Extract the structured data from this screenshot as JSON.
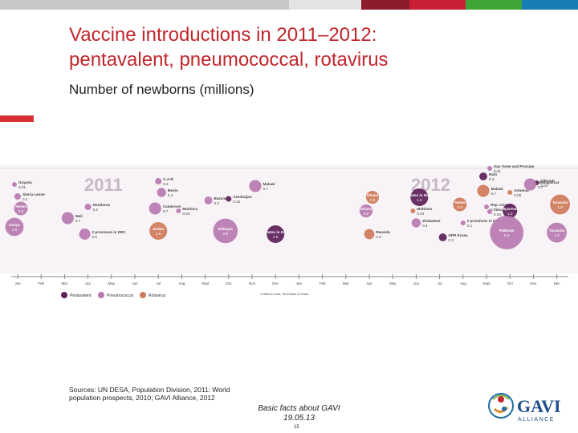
{
  "colors": {
    "topbar": [
      "#c8c8c8",
      "#e3e3e3",
      "#8e1a2d",
      "#c81f35",
      "#3fa535",
      "#167eb3"
    ],
    "pentavalent": "#5b1f57",
    "pneumococcal": "#b879b0",
    "rotavirus": "#cf7b5a",
    "title": "#c0272d"
  },
  "title": {
    "line1": "Vaccine introductions in 2011–2012:",
    "line2": "pentavalent, pneumococcal, rotavirus"
  },
  "subtitle": "Number of newborns (millions)",
  "sources": "Sources: UN DESA, Population Division, 2011: World population prospects, 2010; GAVI Alliance, 2012",
  "footer": {
    "line1": "Basic facts about GAVI",
    "line2": "19.05.13",
    "page": "15"
  },
  "logo": {
    "text": "GAVI",
    "subtext": "ALLIANCE",
    "icon": "globe-mother-child-icon"
  },
  "chart_data": {
    "type": "scatter",
    "encoding": "bubble size = number of newborns (millions); color = vaccine type; x = month of introduction",
    "years": [
      "2011",
      "2012"
    ],
    "months": [
      "Jan",
      "Feb",
      "Mar",
      "Apr",
      "May",
      "Jun",
      "Jul",
      "Aug",
      "Sept",
      "Oct",
      "Nov",
      "Dec"
    ],
    "series": [
      {
        "name": "Pentavalent",
        "color": "#5b1f57"
      },
      {
        "name": "Pneumococcal",
        "color": "#b879b0"
      },
      {
        "name": "Rotavirus",
        "color": "#cf7b5a"
      }
    ],
    "note": "2 states in India; Tamil Nadu & Kerala",
    "points": [
      {
        "label": "Guyana",
        "value": "0.01",
        "year": 2011,
        "month": 1,
        "series": "Pneumococcal"
      },
      {
        "label": "Sierra Leone",
        "value": "0.2",
        "year": 2011,
        "month": 1,
        "series": "Pneumococcal"
      },
      {
        "label": "Yemen",
        "value": "0.9",
        "year": 2011,
        "month": 1,
        "series": "Pneumococcal"
      },
      {
        "label": "Kenya",
        "value": "1.6",
        "year": 2011,
        "month": 1,
        "series": "Pneumococcal"
      },
      {
        "label": "Honduras",
        "value": "0.2",
        "year": 2011,
        "month": 4,
        "series": "Pneumococcal"
      },
      {
        "label": "Mali",
        "value": "0.7",
        "year": 2011,
        "month": 3,
        "series": "Pneumococcal"
      },
      {
        "label": "2 provinces in DRC",
        "value": "0.6",
        "year": 2011,
        "month": 4,
        "series": "Pneumococcal"
      },
      {
        "label": "C.A.R.",
        "value": "0.2",
        "year": 2011,
        "month": 7,
        "series": "Pneumococcal"
      },
      {
        "label": "Benin",
        "value": "0.4",
        "year": 2011,
        "month": 7,
        "series": "Pneumococcal"
      },
      {
        "label": "Cameroon",
        "value": "0.7",
        "year": 2011,
        "month": 7,
        "series": "Pneumococcal"
      },
      {
        "label": "Sudan",
        "value": "1.5",
        "year": 2011,
        "month": 7,
        "series": "Rotavirus"
      },
      {
        "label": "Burundi",
        "value": "0.3",
        "year": 2011,
        "month": 9,
        "series": "Pneumococcal"
      },
      {
        "label": "Moldova",
        "value": "0.04",
        "year": 2011,
        "month": 8,
        "series": "Pneumococcal"
      },
      {
        "label": "Azerbaijan",
        "value": "0.15",
        "year": 2011,
        "month": 10,
        "series": "Pentavalent"
      },
      {
        "label": "Malawi",
        "value": "0.7",
        "year": 2011,
        "month": 11,
        "series": "Pneumococcal"
      },
      {
        "label": "Ethiopia",
        "value": "2.9",
        "year": 2011,
        "month": 10,
        "series": "Pneumococcal"
      },
      {
        "label": "2 states in India",
        "value": "1.5",
        "year": 2011,
        "month": 12,
        "series": "Pentavalent"
      },
      {
        "label": "Ghana",
        "value": "0.8",
        "year": 2012,
        "month": 4,
        "series": "Rotavirus"
      },
      {
        "label": "Ghana",
        "value": "0.8",
        "year": 2012,
        "month": 4,
        "series": "Pneumococcal"
      },
      {
        "label": "Rwanda",
        "value": "0.5",
        "year": 2012,
        "month": 4,
        "series": "Rotavirus"
      },
      {
        "label": "14 states in Nigeria",
        "value": "1.5",
        "year": 2012,
        "month": 6,
        "series": "Pentavalent"
      },
      {
        "label": "Moldova",
        "value": "0.04",
        "year": 2012,
        "month": 6,
        "series": "Rotavirus"
      },
      {
        "label": "Zimbabwe",
        "value": "0.4",
        "year": 2012,
        "month": 6,
        "series": "Pneumococcal"
      },
      {
        "label": "DPR Korea",
        "value": "0.3",
        "year": 2012,
        "month": 7,
        "series": "Pentavalent"
      },
      {
        "label": "Yemen",
        "value": "0.9",
        "year": 2012,
        "month": 8,
        "series": "Rotavirus"
      },
      {
        "label": "2 provinces in DRC",
        "value": "0.1",
        "year": 2012,
        "month": 8,
        "series": "Pneumococcal"
      },
      {
        "label": "Sao Tome and Principe",
        "value": "0.01",
        "year": 2012,
        "month": 9,
        "series": "Pneumococcal"
      },
      {
        "label": "Haiti",
        "value": "0.3",
        "year": 2012,
        "month": 9,
        "series": "Pentavalent"
      },
      {
        "label": "Armenia",
        "value": "0.05",
        "year": 2012,
        "month": 10,
        "series": "Rotavirus"
      },
      {
        "label": "Djibouti",
        "value": "0.04",
        "year": 2012,
        "month": 11,
        "series": "Pentavalent"
      },
      {
        "label": "Malawi",
        "value": "0.7",
        "year": 2012,
        "month": 9,
        "series": "Rotavirus"
      },
      {
        "label": "Rep. Congo",
        "value": "0.1",
        "year": 2012,
        "month": 9,
        "series": "Pneumococcal"
      },
      {
        "label": "Timor Leste",
        "value": "0.04",
        "year": 2012,
        "month": 9,
        "series": "Pneumococcal"
      },
      {
        "label": "Madagascar",
        "value": "0.7",
        "year": 2012,
        "month": 11,
        "series": "Pneumococcal"
      },
      {
        "label": "Myanmar",
        "value": "1.0",
        "year": 2012,
        "month": 10,
        "series": "Pentavalent"
      },
      {
        "label": "Tanzania",
        "value": "1.9",
        "year": 2012,
        "month": 12,
        "series": "Rotavirus"
      },
      {
        "label": "Pakistan",
        "value": "5.4",
        "year": 2012,
        "month": 10,
        "series": "Pneumococcal"
      },
      {
        "label": "Tanzania",
        "value": "1.9",
        "year": 2012,
        "month": 12,
        "series": "Pneumococcal"
      }
    ]
  }
}
